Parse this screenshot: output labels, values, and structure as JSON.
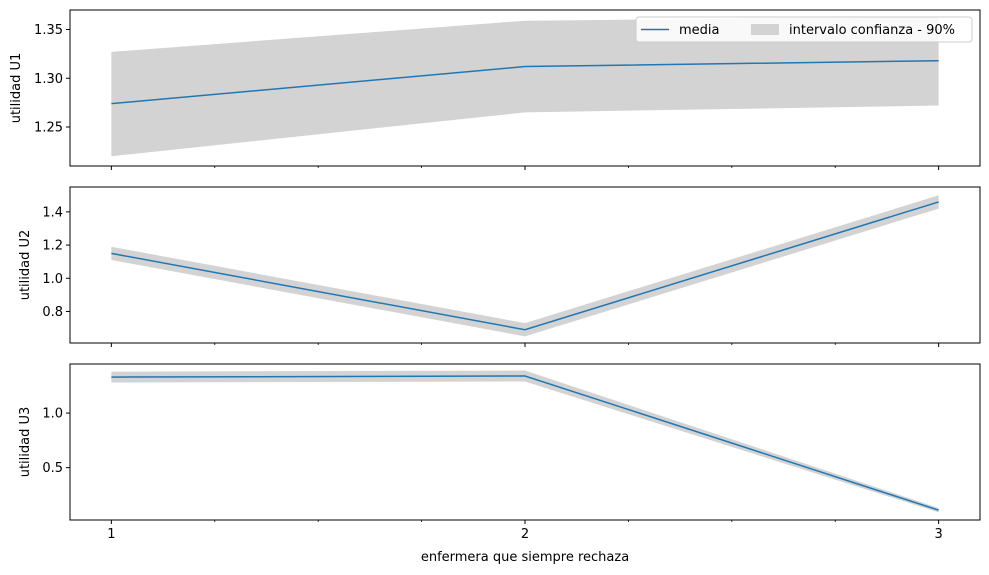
{
  "chart_data": [
    {
      "type": "line",
      "ylabel": "utilidad U1",
      "x": [
        1,
        2,
        3
      ],
      "ylim": [
        1.21,
        1.37
      ],
      "yticks": [
        1.25,
        1.3,
        1.35
      ],
      "ytick_labels": [
        "1.25",
        "1.30",
        "1.35"
      ],
      "mean": [
        1.274,
        1.312,
        1.318
      ],
      "ci_low": [
        1.22,
        1.265,
        1.272
      ],
      "ci_high": [
        1.327,
        1.359,
        1.363
      ]
    },
    {
      "type": "line",
      "ylabel": "utilidad U2",
      "x": [
        1,
        2,
        3
      ],
      "ylim": [
        0.61,
        1.55
      ],
      "yticks": [
        0.8,
        1.0,
        1.2,
        1.4
      ],
      "ytick_labels": [
        "0.8",
        "1.0",
        "1.2",
        "1.4"
      ],
      "mean": [
        1.15,
        0.69,
        1.46
      ],
      "ci_low": [
        1.11,
        0.65,
        1.42
      ],
      "ci_high": [
        1.19,
        0.73,
        1.5
      ]
    },
    {
      "type": "line",
      "ylabel": "utilidad U3",
      "x": [
        1,
        2,
        3
      ],
      "ylim": [
        0.02,
        1.45
      ],
      "yticks": [
        0.5,
        1.0
      ],
      "ytick_labels": [
        "0.5",
        "1.0"
      ],
      "mean": [
        1.33,
        1.34,
        0.11
      ],
      "ci_low": [
        1.28,
        1.29,
        0.09
      ],
      "ci_high": [
        1.38,
        1.39,
        0.13
      ]
    }
  ],
  "x_axis": {
    "label": "enfermera que siempre rechaza",
    "xlim": [
      0.9,
      3.1
    ],
    "ticks": [
      1,
      2,
      3
    ],
    "tick_labels": [
      "1",
      "2",
      "3"
    ],
    "minor_ticks": [
      1.25,
      1.5,
      1.75,
      2.25,
      2.5,
      2.75
    ]
  },
  "legend": {
    "placement": "top-right",
    "entries": [
      {
        "label": "media",
        "kind": "line"
      },
      {
        "label": "intervalo confianza - 90%",
        "kind": "band"
      }
    ]
  },
  "colors": {
    "line": "#1f77b4",
    "band": "#d3d3d3",
    "axis": "#000000",
    "legend_border": "#cccccc"
  }
}
